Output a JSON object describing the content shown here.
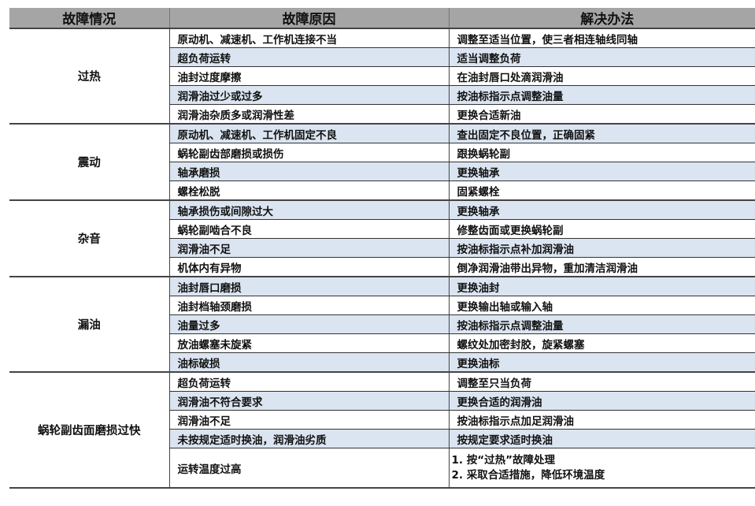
{
  "headers": [
    "故障情况",
    "故障原因",
    "解决办法"
  ],
  "groups": [
    {
      "name": "过热",
      "rows": [
        {
          "cause": "原动机、减速机、工作机连接不当",
          "solution": "调整至适当位置，使三者相连轴线同轴"
        },
        {
          "cause": "超负荷运转",
          "solution": "适当调整负荷"
        },
        {
          "cause": "油封过度摩擦",
          "solution": "在油封唇口处滴润滑油"
        },
        {
          "cause": "润滑油过少或过多",
          "solution": "按油标指示点调整油量"
        },
        {
          "cause": "润滑油杂质多或润滑性差",
          "solution": "更换合适新油"
        }
      ]
    },
    {
      "name": "震动",
      "rows": [
        {
          "cause": "原动机、减速机、工作机固定不良",
          "solution": "查出固定不良位置，正确固紧"
        },
        {
          "cause": "蜗轮副齿部磨损或损伤",
          "solution": "跟换蜗轮副"
        },
        {
          "cause": "轴承磨损",
          "solution": "更换轴承"
        },
        {
          "cause": "螺栓松脱",
          "solution": "固紧螺栓"
        }
      ]
    },
    {
      "name": "杂音",
      "rows": [
        {
          "cause": "轴承损伤或间隙过大",
          "solution": "更换轴承"
        },
        {
          "cause": "蜗轮副啮合不良",
          "solution": "修整齿面或更换蜗轮副"
        },
        {
          "cause": "润滑油不足",
          "solution": "按油标指示点补加润滑油"
        },
        {
          "cause": "机体内有异物",
          "solution": "倒净润滑油带出异物，重加清洁润滑油"
        }
      ]
    },
    {
      "name": "漏油",
      "rows": [
        {
          "cause": "油封唇口磨损",
          "solution": "更换油封"
        },
        {
          "cause": "油封档轴颈磨损",
          "solution": "更换输出轴或输入轴"
        },
        {
          "cause": "油量过多",
          "solution": "按油标指示点调整油量"
        },
        {
          "cause": "放油螺塞未旋紧",
          "solution": "螺纹处加密封胶，旋紧螺塞"
        },
        {
          "cause": "油标破损",
          "solution": "更换油标"
        }
      ]
    },
    {
      "name": "蜗轮副齿面磨损过快",
      "rows": [
        {
          "cause": "超负荷运转",
          "solution": "调整至只当负荷"
        },
        {
          "cause": "润滑油不符合要求",
          "solution": "更换合适的润滑油"
        },
        {
          "cause": "润滑油不足",
          "solution": "按油标指示点加足润滑油"
        },
        {
          "cause": "未按规定适时换油，润滑油劣质",
          "solution": "按规定要求适时换油"
        },
        {
          "cause": "运转温度过高",
          "solution": [
            "1. 按“过热”故障处理",
            "2. 采取合适措施，降低环境温度"
          ]
        }
      ]
    }
  ]
}
